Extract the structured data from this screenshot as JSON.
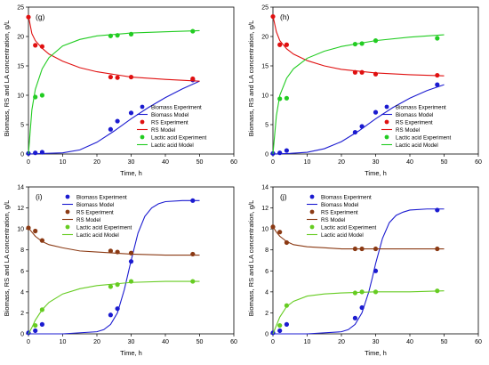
{
  "chart_data": [
    {
      "panel": "(g)",
      "type": "scatter",
      "xlabel": "Time, h",
      "ylabel": "Biomass, RS and LA concentration, g/L",
      "xlim": [
        0,
        60
      ],
      "ylim": [
        0,
        25
      ],
      "xticks": [
        0,
        10,
        20,
        30,
        40,
        50,
        60
      ],
      "yticks": [
        0,
        5,
        10,
        15,
        20,
        25
      ],
      "legend": [
        "Biomass Experiment",
        "Biomass Model",
        "RS Experiment",
        "RS Model",
        "Lactic acid Experiment",
        "Lactic acid Model"
      ],
      "legend_position": "bottom-right",
      "series": [
        {
          "name": "Biomass Experiment",
          "color": "#1b1bd0",
          "marker": true,
          "x": [
            0,
            2,
            4,
            24,
            26,
            30,
            48
          ],
          "y": [
            0.1,
            0.2,
            0.3,
            4.2,
            5.6,
            7.0,
            12.6
          ]
        },
        {
          "name": "Biomass Model",
          "color": "#1b1bd0",
          "x": [
            0,
            5,
            10,
            15,
            20,
            25,
            30,
            35,
            40,
            45,
            50
          ],
          "y": [
            0.0,
            0.1,
            0.2,
            0.7,
            2.0,
            3.9,
            6.0,
            7.9,
            9.6,
            11.1,
            12.4
          ]
        },
        {
          "name": "RS Experiment",
          "color": "#e01010",
          "marker": true,
          "x": [
            0,
            2,
            4,
            24,
            26,
            30,
            48
          ],
          "y": [
            23.3,
            18.5,
            18.3,
            13.1,
            13.0,
            13.1,
            12.8
          ]
        },
        {
          "name": "RS Model",
          "color": "#e01010",
          "x": [
            0,
            1,
            2,
            4,
            6,
            10,
            15,
            20,
            30,
            40,
            50
          ],
          "y": [
            23.5,
            20.5,
            19.3,
            18.0,
            17.0,
            15.8,
            14.7,
            14.0,
            13.1,
            12.7,
            12.4
          ]
        },
        {
          "name": "Lactic acid Experiment",
          "color": "#22cc22",
          "marker": true,
          "x": [
            2,
            4,
            24,
            26,
            30,
            48
          ],
          "y": [
            9.7,
            10.0,
            20.1,
            20.2,
            20.4,
            20.9
          ]
        },
        {
          "name": "Lactic acid Model",
          "color": "#22cc22",
          "x": [
            0,
            1,
            2,
            4,
            6,
            10,
            15,
            20,
            30,
            40,
            50
          ],
          "y": [
            0.0,
            7.5,
            11.0,
            14.5,
            16.4,
            18.4,
            19.5,
            20.1,
            20.6,
            20.8,
            21.0
          ]
        }
      ]
    },
    {
      "panel": "(h)",
      "type": "scatter",
      "xlabel": "Time, h",
      "ylabel": "Biomass, RS and LA concentration, g/L",
      "xlim": [
        0,
        60
      ],
      "ylim": [
        0,
        25
      ],
      "xticks": [
        0,
        10,
        20,
        30,
        40,
        50,
        60
      ],
      "yticks": [
        0,
        5,
        10,
        15,
        20,
        25
      ],
      "legend": [
        "Biomass Experiment",
        "Biomass Model",
        "RS Experiment",
        "RS Model",
        "Lactic acid Experiment",
        "Lactic acid Model"
      ],
      "legend_position": "bottom-right",
      "series": [
        {
          "name": "Biomass Experiment",
          "color": "#1b1bd0",
          "marker": true,
          "x": [
            0,
            2,
            4,
            24,
            26,
            30,
            48
          ],
          "y": [
            0.1,
            0.2,
            0.6,
            3.7,
            4.7,
            7.1,
            11.8
          ]
        },
        {
          "name": "Biomass Model",
          "color": "#1b1bd0",
          "x": [
            0,
            5,
            10,
            15,
            20,
            25,
            30,
            35,
            40,
            45,
            50
          ],
          "y": [
            0.0,
            0.1,
            0.3,
            0.9,
            2.1,
            3.9,
            6.0,
            7.9,
            9.5,
            10.8,
            11.8
          ]
        },
        {
          "name": "RS Experiment",
          "color": "#e01010",
          "marker": true,
          "x": [
            0,
            2,
            4,
            24,
            26,
            30,
            48
          ],
          "y": [
            23.4,
            18.6,
            18.6,
            13.9,
            13.9,
            13.6,
            13.4
          ]
        },
        {
          "name": "RS Model",
          "color": "#e01010",
          "x": [
            0,
            1,
            2,
            4,
            6,
            10,
            15,
            20,
            30,
            40,
            50
          ],
          "y": [
            23.5,
            20.8,
            19.3,
            17.9,
            17.0,
            15.9,
            15.0,
            14.4,
            13.8,
            13.5,
            13.3
          ]
        },
        {
          "name": "Lactic acid Experiment",
          "color": "#22cc22",
          "marker": true,
          "x": [
            2,
            4,
            24,
            26,
            30,
            48
          ],
          "y": [
            9.4,
            9.5,
            18.7,
            18.8,
            19.3,
            19.7
          ]
        },
        {
          "name": "Lactic acid Model",
          "color": "#22cc22",
          "x": [
            0,
            1,
            2,
            4,
            6,
            10,
            15,
            20,
            30,
            40,
            50
          ],
          "y": [
            0.0,
            6.5,
            10.0,
            12.9,
            14.5,
            16.3,
            17.5,
            18.3,
            19.3,
            19.9,
            20.3
          ]
        }
      ]
    },
    {
      "panel": "(i)",
      "type": "scatter",
      "xlabel": "Time, h",
      "ylabel": "Biomass, RS and LA concentration, g/L",
      "xlim": [
        0,
        60
      ],
      "ylim": [
        0,
        14
      ],
      "xticks": [
        0,
        10,
        20,
        30,
        40,
        50,
        60
      ],
      "yticks": [
        0,
        2,
        4,
        6,
        8,
        10,
        12,
        14
      ],
      "legend": [
        "Biomass Experiment",
        "Biomass Model",
        "RS Experiment",
        "RS Model",
        "Lactic acid Experiment",
        "Lactic acid Model"
      ],
      "legend_position": "top-left",
      "series": [
        {
          "name": "Biomass Experiment",
          "color": "#1b1bd0",
          "marker": true,
          "x": [
            0,
            2,
            4,
            24,
            26,
            30,
            48
          ],
          "y": [
            0.1,
            0.3,
            0.9,
            1.8,
            2.4,
            6.9,
            12.7
          ]
        },
        {
          "name": "Biomass Model",
          "color": "#1b1bd0",
          "x": [
            0,
            10,
            20,
            22,
            24,
            26,
            28,
            29,
            30,
            32,
            34,
            36,
            38,
            40,
            45,
            50
          ],
          "y": [
            0.0,
            0.0,
            0.2,
            0.4,
            0.9,
            2.0,
            4.2,
            5.6,
            7.0,
            9.6,
            11.2,
            12.0,
            12.4,
            12.6,
            12.7,
            12.7
          ]
        },
        {
          "name": "RS Experiment",
          "color": "#8b3a14",
          "marker": true,
          "x": [
            0,
            2,
            4,
            24,
            26,
            30,
            48
          ],
          "y": [
            10.1,
            9.8,
            8.9,
            7.9,
            7.8,
            7.7,
            7.6
          ]
        },
        {
          "name": "RS Model",
          "color": "#8b3a14",
          "x": [
            0,
            1,
            2,
            4,
            6,
            10,
            15,
            20,
            30,
            40,
            50
          ],
          "y": [
            10.1,
            9.7,
            9.3,
            8.8,
            8.5,
            8.2,
            7.9,
            7.8,
            7.6,
            7.5,
            7.5
          ]
        },
        {
          "name": "Lactic acid Experiment",
          "color": "#66cc22",
          "marker": true,
          "x": [
            2,
            4,
            24,
            26,
            30,
            48
          ],
          "y": [
            0.8,
            2.3,
            4.5,
            4.7,
            5.0,
            5.0
          ]
        },
        {
          "name": "Lactic acid Model",
          "color": "#66cc22",
          "x": [
            0,
            1,
            2,
            4,
            6,
            10,
            15,
            20,
            30,
            40,
            50
          ],
          "y": [
            0.0,
            0.6,
            1.3,
            2.3,
            3.0,
            3.8,
            4.3,
            4.6,
            4.9,
            5.0,
            5.0
          ]
        }
      ]
    },
    {
      "panel": "(j)",
      "type": "scatter",
      "xlabel": "Time, h",
      "ylabel": "Biomass, RS and LA concentration, g/L",
      "xlim": [
        0,
        60
      ],
      "ylim": [
        0,
        14
      ],
      "xticks": [
        0,
        10,
        20,
        30,
        40,
        50,
        60
      ],
      "yticks": [
        0,
        2,
        4,
        6,
        8,
        10,
        12,
        14
      ],
      "legend": [
        "Biomass Experiment",
        "Biomass Model",
        "RS Experiment",
        "RS Model",
        "Lactic acid Experiment",
        "Lactic acid Model"
      ],
      "legend_position": "top-left",
      "series": [
        {
          "name": "Biomass Experiment",
          "color": "#1b1bd0",
          "marker": true,
          "x": [
            0,
            2,
            4,
            24,
            26,
            30,
            48
          ],
          "y": [
            0.1,
            0.3,
            0.9,
            1.5,
            2.5,
            6.0,
            11.8
          ]
        },
        {
          "name": "Biomass Model",
          "color": "#1b1bd0",
          "x": [
            0,
            10,
            20,
            22,
            24,
            26,
            28,
            29,
            30,
            32,
            34,
            36,
            38,
            40,
            45,
            50
          ],
          "y": [
            0.0,
            0.0,
            0.2,
            0.4,
            0.9,
            2.0,
            4.0,
            5.3,
            6.7,
            9.1,
            10.6,
            11.3,
            11.6,
            11.8,
            11.9,
            11.9
          ]
        },
        {
          "name": "RS Experiment",
          "color": "#8b3a14",
          "marker": true,
          "x": [
            0,
            2,
            4,
            24,
            26,
            30,
            48
          ],
          "y": [
            10.2,
            9.7,
            8.7,
            8.1,
            8.1,
            8.1,
            8.1
          ]
        },
        {
          "name": "RS Model",
          "color": "#8b3a14",
          "x": [
            0,
            1,
            2,
            4,
            6,
            10,
            15,
            20,
            30,
            40,
            50
          ],
          "y": [
            10.2,
            9.7,
            9.3,
            8.8,
            8.5,
            8.3,
            8.2,
            8.1,
            8.1,
            8.1,
            8.1
          ]
        },
        {
          "name": "Lactic acid Experiment",
          "color": "#66cc22",
          "marker": true,
          "x": [
            2,
            4,
            24,
            26,
            30,
            48
          ],
          "y": [
            0.8,
            2.7,
            3.9,
            4.0,
            4.0,
            4.1
          ]
        },
        {
          "name": "Lactic acid Model",
          "color": "#66cc22",
          "x": [
            0,
            1,
            2,
            4,
            6,
            10,
            15,
            20,
            30,
            40,
            50
          ],
          "y": [
            0.0,
            0.8,
            1.6,
            2.6,
            3.1,
            3.6,
            3.8,
            3.9,
            4.0,
            4.0,
            4.1
          ]
        }
      ]
    }
  ]
}
